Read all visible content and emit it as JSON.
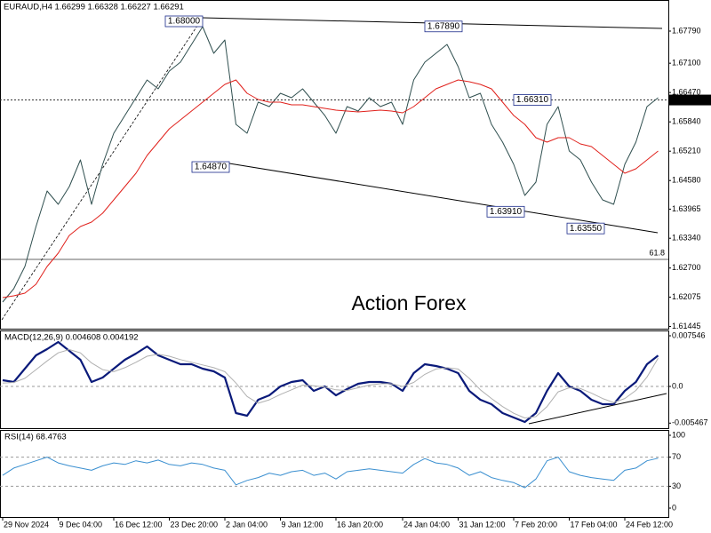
{
  "chart_data": [
    {
      "type": "line",
      "title": "EURAUD,H4 1.66299 1.66328 1.66227 1.66291",
      "watermark": "Action Forex",
      "categories": [
        "29 Nov 2024",
        null,
        null,
        null,
        null,
        "9 Dec 04:00",
        null,
        null,
        null,
        null,
        "16 Dec 12:00",
        null,
        null,
        null,
        null,
        "23 Dec 20:00",
        null,
        null,
        null,
        null,
        "2 Jan 04:00",
        null,
        null,
        null,
        null,
        "9 Jan 12:00",
        null,
        null,
        null,
        null,
        "16 Jan 20:00",
        null,
        null,
        null,
        null,
        null,
        "24 Jan 04:00",
        null,
        null,
        null,
        null,
        "31 Jan 12:00",
        null,
        null,
        null,
        null,
        "7 Feb 20:00",
        null,
        null,
        null,
        null,
        "17 Feb 04:00",
        null,
        null,
        null,
        null,
        "24 Feb 12:00",
        null,
        null,
        null
      ],
      "ylim": [
        1.61397,
        1.68458
      ],
      "yticks": [
        {
          "value": 1.6779,
          "label": "1.67790"
        },
        {
          "value": 1.671,
          "label": "1.67100"
        },
        {
          "value": 1.6647,
          "label": "1.66470"
        },
        {
          "value": 1.6584,
          "label": "1.65840"
        },
        {
          "value": 1.6521,
          "label": "1.65210"
        },
        {
          "value": 1.6458,
          "label": "1.64580"
        },
        {
          "value": 1.63965,
          "label": "1.63965"
        },
        {
          "value": 1.6334,
          "label": "1.63340"
        },
        {
          "value": 1.627,
          "label": "1.62700"
        },
        {
          "value": 1.62075,
          "label": "1.62075"
        },
        {
          "value": 1.61445,
          "label": "1.61445"
        }
      ],
      "current_price": {
        "value": 1.6631,
        "label": "1.66310"
      },
      "fib_level": {
        "percent": 61.8,
        "price": 1.62885
      },
      "annotations": [
        {
          "value": 1.68,
          "label": "1.68000"
        },
        {
          "value": 1.6789,
          "label": "1.67890"
        },
        {
          "value": 1.6631,
          "label": "1.66310"
        },
        {
          "value": 1.6487,
          "label": "1.64870"
        },
        {
          "value": 1.6391,
          "label": "1.63910"
        },
        {
          "value": 1.6355,
          "label": "1.63550"
        }
      ],
      "series": [
        {
          "name": "EURAUD",
          "color": "#2f4f4f",
          "values": [
            1.61969,
            1.62256,
            1.62733,
            1.63592,
            1.64355,
            1.64069,
            1.6445,
            1.65023,
            1.64069,
            1.64927,
            1.65595,
            1.65977,
            1.66359,
            1.6674,
            1.6655,
            1.66931,
            1.67122,
            1.67504,
            1.67885,
            1.67313,
            1.67599,
            1.65786,
            1.65595,
            1.66263,
            1.66168,
            1.66454,
            1.66359,
            1.6655,
            1.66263,
            1.65977,
            1.65595,
            1.66168,
            1.66072,
            1.66359,
            1.66168,
            1.66263,
            1.65786,
            1.6674,
            1.67122,
            1.67313,
            1.67504,
            1.67027,
            1.66359,
            1.66454,
            1.65786,
            1.65404,
            1.64927,
            1.64259,
            1.64546,
            1.65786,
            1.66168,
            1.65214,
            1.65023,
            1.64546,
            1.64164,
            1.64069,
            1.64927,
            1.65404,
            1.66168,
            1.66359
          ]
        },
        {
          "name": "MA",
          "color": "#e0201b",
          "values": [
            1.62065,
            1.62103,
            1.6216,
            1.62351,
            1.62733,
            1.63019,
            1.63401,
            1.63592,
            1.63687,
            1.63878,
            1.64164,
            1.6445,
            1.64737,
            1.65118,
            1.65404,
            1.65691,
            1.65882,
            1.66072,
            1.66263,
            1.66454,
            1.66645,
            1.6674,
            1.66454,
            1.66321,
            1.66263,
            1.66263,
            1.66206,
            1.66206,
            1.66168,
            1.6613,
            1.66092,
            1.66072,
            1.66053,
            1.66072,
            1.66092,
            1.66072,
            1.66034,
            1.66168,
            1.66359,
            1.6655,
            1.66645,
            1.6674,
            1.66702,
            1.66645,
            1.6655,
            1.66263,
            1.65977,
            1.65786,
            1.655,
            1.65404,
            1.655,
            1.655,
            1.65366,
            1.65309,
            1.65118,
            1.64927,
            1.64737,
            1.64832,
            1.65023,
            1.65214
          ]
        }
      ]
    },
    {
      "type": "line",
      "title": "MACD(12,26,9) 0.004608 0.004192",
      "ylim": [
        -0.00622,
        0.00834
      ],
      "yticks": [
        0.007546,
        {
          "value": 0,
          "label": "0.0"
        },
        -0.005467
      ],
      "levels": [
        0
      ],
      "series": [
        {
          "name": "MACD",
          "color": "#0a1a7a",
          "values": [
            0.00093,
            0.00066,
            0.00265,
            0.00463,
            0.00556,
            0.00662,
            0.0053,
            0.00397,
            0.00066,
            0.00132,
            0.00265,
            0.00397,
            0.0049,
            0.00596,
            0.00463,
            0.00397,
            0.00331,
            0.00331,
            0.00265,
            0.00225,
            0.00132,
            -0.00397,
            -0.00437,
            -0.00199,
            -0.00132,
            0,
            0.00066,
            0.00093,
            -0.00066,
            0,
            -0.00132,
            -0.0004,
            0.0004,
            0.00066,
            0.00066,
            0.0004,
            -0.00066,
            0.00199,
            0.00331,
            0.00305,
            0.00265,
            0.00199,
            -0.00066,
            -0.00199,
            -0.00265,
            -0.00397,
            -0.00463,
            -0.0053,
            -0.00397,
            -0.00066,
            0.00199,
            0,
            -0.00066,
            -0.00199,
            -0.00265,
            -0.00265,
            -0.00066,
            0.00066,
            0.00331,
            0.004608
          ]
        },
        {
          "name": "Signal",
          "color": "#b0b0b0",
          "values": [
            0.0005,
            0.0006,
            0.0012,
            0.0025,
            0.0038,
            0.005,
            0.0055,
            0.005,
            0.0035,
            0.0025,
            0.0022,
            0.0028,
            0.0036,
            0.0045,
            0.0048,
            0.0045,
            0.004,
            0.0036,
            0.0032,
            0.0028,
            0.0022,
            0.0005,
            -0.0015,
            -0.0025,
            -0.002,
            -0.0012,
            -0.0005,
            0.0002,
            0.0001,
            -0.0001,
            -0.0005,
            -0.0006,
            -0.0002,
            0.0002,
            0.0004,
            0.0004,
            0,
            0.0006,
            0.0018,
            0.0026,
            0.0028,
            0.0026,
            0.0012,
            -0.0005,
            -0.0018,
            -0.003,
            -0.004,
            -0.0047,
            -0.0045,
            -0.003,
            -0.0008,
            -0.0002,
            -0.0003,
            -0.001,
            -0.0018,
            -0.0024,
            -0.0018,
            -0.0006,
            0.0014,
            0.004192
          ]
        }
      ]
    },
    {
      "type": "line",
      "title": "RSI(14) 68.4763",
      "ylim": [
        -12.2,
        107.3
      ],
      "yticks": [
        100,
        70,
        30,
        0
      ],
      "levels": [
        70,
        30
      ],
      "series": [
        {
          "name": "RSI",
          "color": "#3a8fd0",
          "values": [
            45,
            55,
            60,
            65,
            70,
            62,
            58,
            55,
            52,
            58,
            62,
            60,
            65,
            62,
            66,
            60,
            58,
            62,
            60,
            55,
            52,
            32,
            38,
            42,
            48,
            45,
            50,
            52,
            45,
            48,
            40,
            50,
            52,
            54,
            52,
            50,
            48,
            60,
            68,
            62,
            60,
            55,
            45,
            50,
            42,
            38,
            35,
            28,
            40,
            65,
            70,
            50,
            45,
            42,
            40,
            38,
            52,
            55,
            65,
            68.4763
          ]
        }
      ]
    }
  ]
}
